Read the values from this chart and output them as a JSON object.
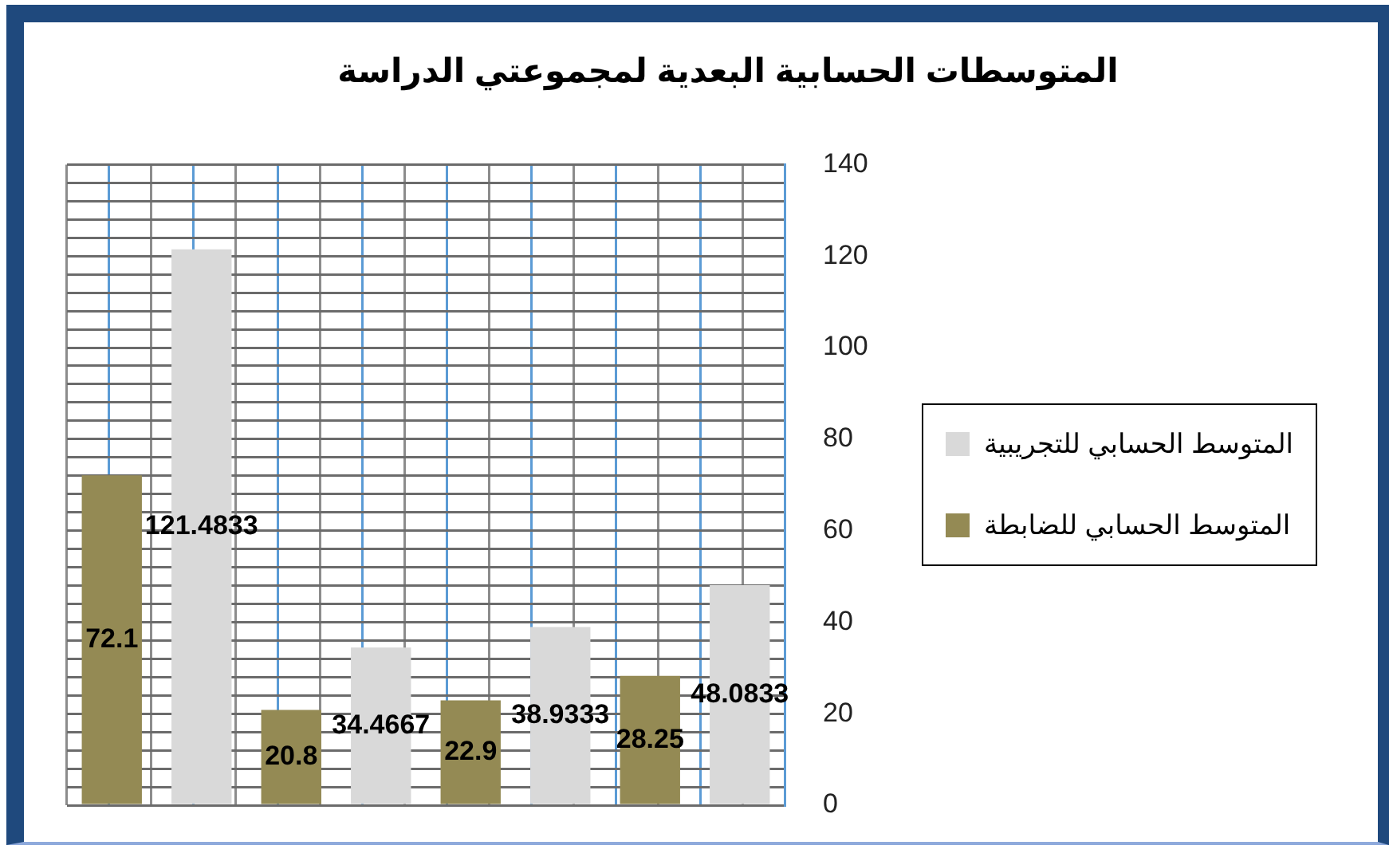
{
  "chart_data": {
    "type": "bar",
    "title": "المتوسطات الحسابية البعدية لمجموعتي الدراسة",
    "categories": [
      null,
      null,
      null,
      null
    ],
    "series": [
      {
        "name": "المتوسط الحسابي للضابطة",
        "color": "#948a54",
        "values": [
          72.1,
          20.8,
          22.9,
          28.25
        ]
      },
      {
        "name": "المتوسط الحسابي للتجريبية",
        "color": "#d9d9d9",
        "values": [
          121.4833,
          34.4667,
          38.9333,
          48.0833
        ]
      }
    ],
    "ylim": [
      0,
      140
    ],
    "yticks": [
      0,
      {
        "value": 4,
        "label": null
      },
      {
        "value": 8,
        "label": null
      },
      {
        "value": 12,
        "label": null
      },
      {
        "value": 16,
        "label": null
      },
      20,
      {
        "value": 24,
        "label": null
      },
      {
        "value": 28,
        "label": null
      },
      {
        "value": 32,
        "label": null
      },
      {
        "value": 36,
        "label": null
      },
      40,
      {
        "value": 44,
        "label": null
      },
      {
        "value": 48,
        "label": null
      },
      {
        "value": 52,
        "label": null
      },
      {
        "value": 56,
        "label": null
      },
      60,
      {
        "value": 64,
        "label": null
      },
      {
        "value": 68,
        "label": null
      },
      {
        "value": 72,
        "label": null
      },
      {
        "value": 76,
        "label": null
      },
      80,
      {
        "value": 84,
        "label": null
      },
      {
        "value": 88,
        "label": null
      },
      {
        "value": 92,
        "label": null
      },
      {
        "value": 96,
        "label": null
      },
      100,
      {
        "value": 104,
        "label": null
      },
      {
        "value": 108,
        "label": null
      },
      {
        "value": 112,
        "label": null
      },
      {
        "value": 116,
        "label": null
      },
      120,
      {
        "value": 124,
        "label": null
      },
      {
        "value": 128,
        "label": null
      },
      {
        "value": 132,
        "label": null
      },
      {
        "value": 136,
        "label": null
      },
      140
    ],
    "grid": true,
    "legend": "right",
    "data_labels": true
  }
}
